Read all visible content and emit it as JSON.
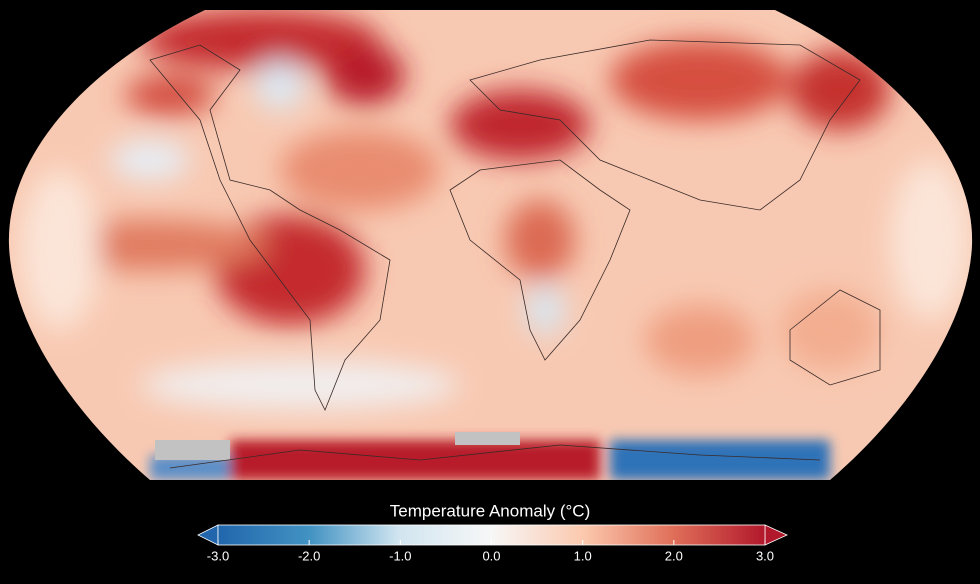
{
  "colorbar": {
    "title": "Temperature Anomaly (°C)",
    "lim": [
      -3,
      3
    ],
    "ticks": [
      {
        "value": -3,
        "label": "-3.0"
      },
      {
        "value": -2,
        "label": "-2.0"
      },
      {
        "value": -1,
        "label": "-1.0"
      },
      {
        "value": 0,
        "label": "0.0"
      },
      {
        "value": 1,
        "label": "1.0"
      },
      {
        "value": 2,
        "label": "2.0"
      },
      {
        "value": 3,
        "label": "3.0"
      }
    ]
  }
}
